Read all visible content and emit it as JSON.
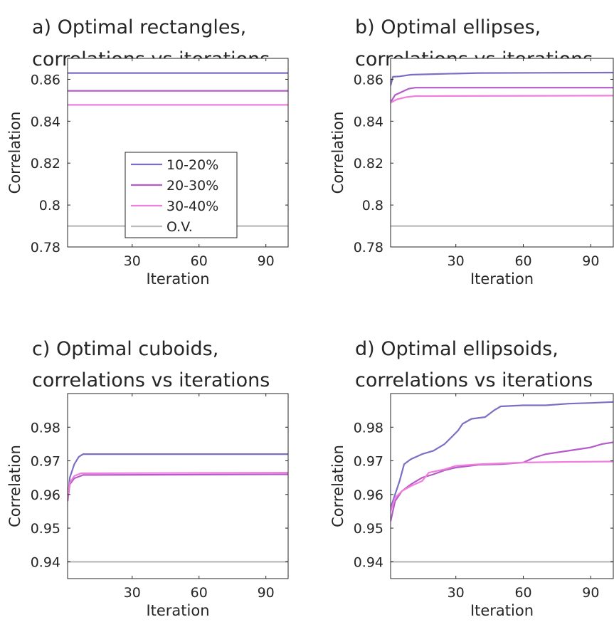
{
  "chart_data": [
    {
      "type": "line",
      "title": [
        "a) Optimal rectangles,",
        "correlations vs iterations"
      ],
      "xlabel": "Iteration",
      "ylabel": "Correlation",
      "xlim": [
        1,
        100
      ],
      "ylim": [
        0.78,
        0.87
      ],
      "xticks": [
        30,
        60,
        90
      ],
      "yticks": [
        0.78,
        0.8,
        0.82,
        0.84,
        0.86
      ],
      "ytick_labels": [
        "0.78",
        "0.8",
        "0.82",
        "0.84",
        "0.86"
      ],
      "grid": false,
      "legend": {
        "position": "center-left",
        "entries": [
          "10-20%",
          "20-30%",
          "30-40%",
          "O.V."
        ]
      },
      "series": [
        {
          "name": "10-20%",
          "color": "#7b6fc4",
          "points": [
            [
              1,
              0.863
            ],
            [
              100,
              0.863
            ]
          ]
        },
        {
          "name": "20-30%",
          "color": "#b45cc9",
          "points": [
            [
              1,
              0.8545
            ],
            [
              100,
              0.8545
            ]
          ]
        },
        {
          "name": "30-40%",
          "color": "#f07fdc",
          "points": [
            [
              1,
              0.8478
            ],
            [
              100,
              0.8478
            ]
          ]
        },
        {
          "name": "O.V.",
          "color": "#bbbbbb",
          "points": [
            [
              1,
              0.79
            ],
            [
              100,
              0.79
            ]
          ]
        }
      ]
    },
    {
      "type": "line",
      "title": [
        "b) Optimal ellipses,",
        "correlations vs iterations"
      ],
      "xlabel": "Iteration",
      "ylabel": "Correlation",
      "xlim": [
        1,
        100
      ],
      "ylim": [
        0.78,
        0.87
      ],
      "xticks": [
        30,
        60,
        90
      ],
      "yticks": [
        0.78,
        0.8,
        0.82,
        0.84,
        0.86
      ],
      "ytick_labels": [
        "0.78",
        "0.8",
        "0.82",
        "0.84",
        "0.86"
      ],
      "grid": false,
      "series": [
        {
          "name": "10-20%",
          "color": "#7b6fc4",
          "points": [
            [
              1,
              0.857
            ],
            [
              2,
              0.8612
            ],
            [
              5,
              0.8614
            ],
            [
              10,
              0.8622
            ],
            [
              20,
              0.8625
            ],
            [
              40,
              0.863
            ],
            [
              100,
              0.8632
            ]
          ]
        },
        {
          "name": "20-30%",
          "color": "#b45cc9",
          "points": [
            [
              1,
              0.849
            ],
            [
              3,
              0.8525
            ],
            [
              6,
              0.854
            ],
            [
              9,
              0.8555
            ],
            [
              12,
              0.856
            ],
            [
              100,
              0.856
            ]
          ]
        },
        {
          "name": "30-40%",
          "color": "#f07fdc",
          "points": [
            [
              1,
              0.8488
            ],
            [
              4,
              0.8505
            ],
            [
              8,
              0.8515
            ],
            [
              12,
              0.852
            ],
            [
              100,
              0.8522
            ]
          ]
        },
        {
          "name": "O.V.",
          "color": "#bbbbbb",
          "points": [
            [
              1,
              0.79
            ],
            [
              100,
              0.79
            ]
          ]
        }
      ]
    },
    {
      "type": "line",
      "title": [
        "c) Optimal cuboids,",
        "correlations vs iterations"
      ],
      "xlabel": "Iteration",
      "ylabel": "Correlation",
      "xlim": [
        1,
        100
      ],
      "ylim": [
        0.935,
        0.99
      ],
      "xticks": [
        30,
        60,
        90
      ],
      "yticks": [
        0.94,
        0.95,
        0.96,
        0.97,
        0.98
      ],
      "ytick_labels": [
        "0.94",
        "0.95",
        "0.96",
        "0.97",
        "0.98"
      ],
      "grid": false,
      "series": [
        {
          "name": "10-20%",
          "color": "#7b6fc4",
          "points": [
            [
              1,
              0.958
            ],
            [
              2,
              0.965
            ],
            [
              4,
              0.969
            ],
            [
              6,
              0.9712
            ],
            [
              8,
              0.972
            ],
            [
              100,
              0.972
            ]
          ]
        },
        {
          "name": "20-30%",
          "color": "#b45cc9",
          "points": [
            [
              1,
              0.958
            ],
            [
              2,
              0.963
            ],
            [
              4,
              0.9648
            ],
            [
              8,
              0.9658
            ],
            [
              100,
              0.966
            ]
          ]
        },
        {
          "name": "30-40%",
          "color": "#f07fdc",
          "points": [
            [
              1,
              0.959
            ],
            [
              2,
              0.9635
            ],
            [
              4,
              0.9655
            ],
            [
              7,
              0.9663
            ],
            [
              100,
              0.9665
            ]
          ]
        },
        {
          "name": "O.V.",
          "color": "#bbbbbb",
          "points": [
            [
              1,
              0.94
            ],
            [
              100,
              0.94
            ]
          ]
        }
      ]
    },
    {
      "type": "line",
      "title": [
        "d) Optimal ellipsoids,",
        "correlations vs iterations"
      ],
      "xlabel": "Iteration",
      "ylabel": "Correlation",
      "xlim": [
        1,
        100
      ],
      "ylim": [
        0.935,
        0.99
      ],
      "xticks": [
        30,
        60,
        90
      ],
      "yticks": [
        0.94,
        0.95,
        0.96,
        0.97,
        0.98
      ],
      "ytick_labels": [
        "0.94",
        "0.95",
        "0.96",
        "0.97",
        "0.98"
      ],
      "grid": false,
      "series": [
        {
          "name": "10-20%",
          "color": "#7b6fc4",
          "points": [
            [
              1,
              0.956
            ],
            [
              3,
              0.96
            ],
            [
              5,
              0.964
            ],
            [
              7,
              0.969
            ],
            [
              10,
              0.9705
            ],
            [
              15,
              0.972
            ],
            [
              20,
              0.973
            ],
            [
              25,
              0.975
            ],
            [
              28,
              0.977
            ],
            [
              31,
              0.979
            ],
            [
              33,
              0.981
            ],
            [
              37,
              0.9825
            ],
            [
              43,
              0.983
            ],
            [
              47,
              0.985
            ],
            [
              50,
              0.9862
            ],
            [
              60,
              0.9865
            ],
            [
              70,
              0.9865
            ],
            [
              80,
              0.987
            ],
            [
              90,
              0.9872
            ],
            [
              100,
              0.9875
            ]
          ]
        },
        {
          "name": "20-30%",
          "color": "#b45cc9",
          "points": [
            [
              1,
              0.952
            ],
            [
              3,
              0.958
            ],
            [
              6,
              0.961
            ],
            [
              10,
              0.963
            ],
            [
              15,
              0.965
            ],
            [
              20,
              0.966
            ],
            [
              25,
              0.9672
            ],
            [
              30,
              0.968
            ],
            [
              40,
              0.9688
            ],
            [
              50,
              0.969
            ],
            [
              60,
              0.9695
            ],
            [
              65,
              0.971
            ],
            [
              70,
              0.972
            ],
            [
              80,
              0.973
            ],
            [
              85,
              0.9735
            ],
            [
              90,
              0.974
            ],
            [
              95,
              0.975
            ],
            [
              100,
              0.9755
            ]
          ]
        },
        {
          "name": "30-40%",
          "color": "#f07fdc",
          "points": [
            [
              1,
              0.955
            ],
            [
              3,
              0.959
            ],
            [
              6,
              0.961
            ],
            [
              10,
              0.9625
            ],
            [
              15,
              0.964
            ],
            [
              18,
              0.9665
            ],
            [
              25,
              0.9675
            ],
            [
              30,
              0.9685
            ],
            [
              40,
              0.969
            ],
            [
              60,
              0.9695
            ],
            [
              80,
              0.9697
            ],
            [
              100,
              0.9698
            ]
          ]
        },
        {
          "name": "O.V.",
          "color": "#bbbbbb",
          "points": [
            [
              1,
              0.94
            ],
            [
              100,
              0.94
            ]
          ]
        }
      ]
    }
  ]
}
